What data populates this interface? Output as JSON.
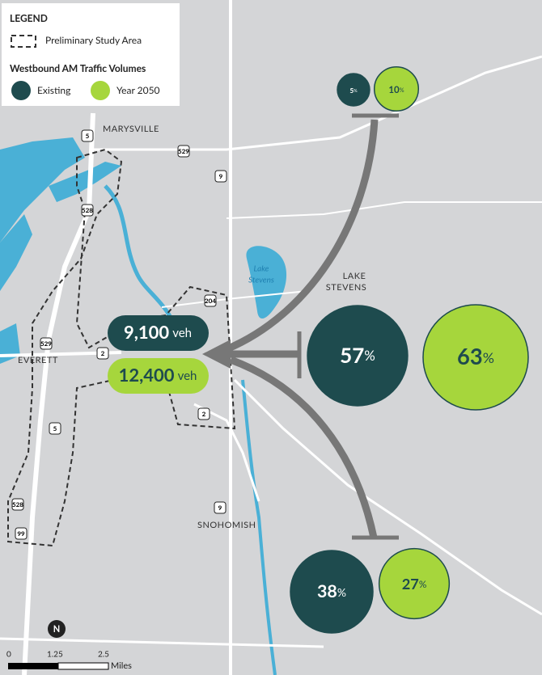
{
  "legend": {
    "title": "LEGEND",
    "study_area": "Preliminary Study Area",
    "volumes_title": "Westbound AM Traffic Volumes",
    "existing": "Existing",
    "year_2050": "Year 2050"
  },
  "places": [
    "MARYSVILLE",
    "EVERETT",
    "LAKE",
    "STEVENS",
    "SNOHOMISH"
  ],
  "lake": [
    "Lake",
    "Stevens"
  ],
  "highway_shields": [
    "5",
    "529",
    "9",
    "528",
    "529",
    "204",
    "2",
    "2",
    "5",
    "9",
    "528",
    "99"
  ],
  "volumes": {
    "existing": {
      "value": 9100,
      "label": "9,100"
    },
    "year_2050": {
      "value": 12400,
      "label": "12,400"
    },
    "unit": "veh"
  },
  "shares": {
    "unit": "%",
    "groups": [
      {
        "existing": 5,
        "year_2050": 10
      },
      {
        "existing": 57,
        "year_2050": 63
      },
      {
        "existing": 38,
        "year_2050": 27
      }
    ]
  },
  "scale": [
    "0",
    "1.25",
    "2.5",
    "Miles"
  ],
  "north": "N"
}
